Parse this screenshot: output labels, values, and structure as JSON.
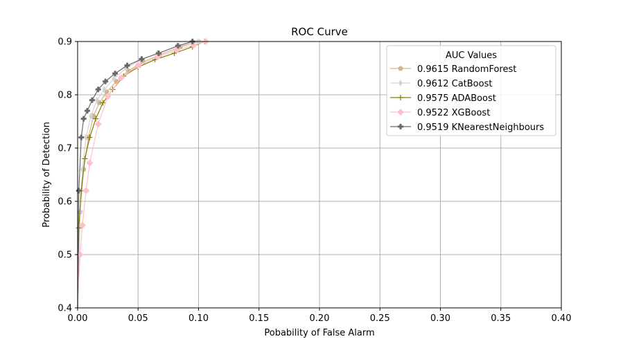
{
  "chart_data": {
    "type": "line",
    "title": "ROC Curve",
    "xlabel": "Pobability of False Alarm",
    "ylabel": "Probability of Detection",
    "xlim": [
      0.0,
      0.4
    ],
    "ylim": [
      0.4,
      0.9
    ],
    "xticks": [
      "0.00",
      "0.05",
      "0.10",
      "0.15",
      "0.20",
      "0.25",
      "0.30",
      "0.35",
      "0.40"
    ],
    "yticks": [
      "0.4",
      "0.5",
      "0.6",
      "0.7",
      "0.8",
      "0.9"
    ],
    "grid": true,
    "legend": {
      "title": "AUC Values",
      "placement": "top-right"
    },
    "series": [
      {
        "name": "0.9615 RandomForest",
        "color": "#d2b48c",
        "marker": "pentagon",
        "x": [
          0.0,
          0.002,
          0.005,
          0.009,
          0.013,
          0.018,
          0.024,
          0.032,
          0.042,
          0.054,
          0.068,
          0.085,
          0.1
        ],
        "y": [
          0.4,
          0.58,
          0.66,
          0.72,
          0.76,
          0.785,
          0.805,
          0.825,
          0.845,
          0.862,
          0.875,
          0.89,
          0.9
        ]
      },
      {
        "name": "0.9612 CatBoost",
        "color": "#d3d3d3",
        "marker": "thin_diamond",
        "x": [
          0.0,
          0.002,
          0.004,
          0.007,
          0.011,
          0.016,
          0.022,
          0.03,
          0.04,
          0.052,
          0.066,
          0.082,
          0.1
        ],
        "y": [
          0.4,
          0.58,
          0.66,
          0.72,
          0.76,
          0.79,
          0.81,
          0.83,
          0.85,
          0.865,
          0.878,
          0.89,
          0.9
        ]
      },
      {
        "name": "0.9575 ADABoost",
        "color": "#808000",
        "marker": "plus",
        "x": [
          0.0,
          0.001,
          0.003,
          0.006,
          0.01,
          0.015,
          0.021,
          0.029,
          0.038,
          0.05,
          0.064,
          0.08,
          0.095,
          0.105
        ],
        "y": [
          0.4,
          0.55,
          0.62,
          0.68,
          0.72,
          0.755,
          0.785,
          0.81,
          0.835,
          0.852,
          0.866,
          0.878,
          0.89,
          0.9
        ]
      },
      {
        "name": "0.9522 XGBoost",
        "color": "#ffc0cb",
        "marker": "diamond",
        "x": [
          0.0,
          0.002,
          0.004,
          0.007,
          0.01,
          0.017,
          0.025,
          0.036,
          0.05,
          0.066,
          0.082,
          0.096,
          0.106
        ],
        "y": [
          0.4,
          0.5,
          0.555,
          0.62,
          0.672,
          0.745,
          0.797,
          0.832,
          0.855,
          0.871,
          0.884,
          0.893,
          0.9
        ]
      },
      {
        "name": "0.9519 KNearestNeighbours",
        "color": "#696969",
        "marker": "plus_filled",
        "x": [
          0.0,
          0.001,
          0.003,
          0.005,
          0.008,
          0.012,
          0.017,
          0.023,
          0.031,
          0.041,
          0.053,
          0.067,
          0.083,
          0.095
        ],
        "y": [
          0.4,
          0.62,
          0.72,
          0.755,
          0.77,
          0.79,
          0.81,
          0.825,
          0.84,
          0.855,
          0.867,
          0.878,
          0.892,
          0.9
        ]
      }
    ]
  }
}
